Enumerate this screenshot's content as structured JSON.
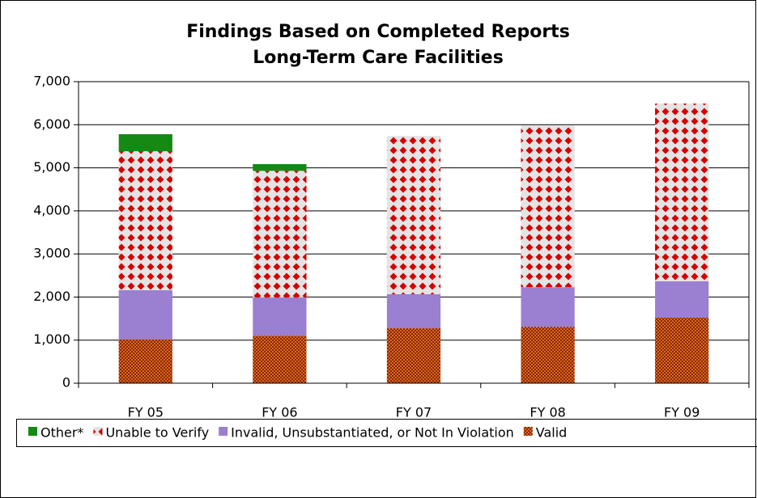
{
  "chart_data": {
    "type": "stacked_bar",
    "title": "Findings Based on Completed Reports",
    "subtitle": "Long-Term Care Facilities",
    "categories": [
      "FY 05",
      "FY 06",
      "FY 07",
      "FY 08",
      "FY 09"
    ],
    "series": [
      {
        "name": "Other*",
        "color": "#138a13",
        "values": [
          395,
          155,
          0,
          0,
          0
        ]
      },
      {
        "name": "Unable to Verify",
        "color": "#d40000",
        "values": [
          3225,
          2940,
          3675,
          3755,
          4125
        ]
      },
      {
        "name": "Invalid, Unsubstantiated, or Not In Violation",
        "color": "#9b7fd1",
        "values": [
          1140,
          890,
          790,
          920,
          845
        ]
      },
      {
        "name": "Valid",
        "color": "#e8641e",
        "values": [
          1020,
          1100,
          1275,
          1310,
          1520
        ]
      }
    ],
    "ylim": [
      0,
      7000
    ],
    "yticks": [
      0,
      {
        "value": 1000,
        "label": "1,000"
      },
      {
        "value": 2000,
        "label": "2,000"
      },
      {
        "value": 3000,
        "label": "3,000"
      },
      {
        "value": 4000,
        "label": "4,000"
      },
      {
        "value": 5000,
        "label": "5,000"
      },
      {
        "value": 6000,
        "label": "6,000"
      },
      {
        "value": 7000,
        "label": "7,000"
      }
    ],
    "grid": true,
    "legend": "bottom"
  }
}
